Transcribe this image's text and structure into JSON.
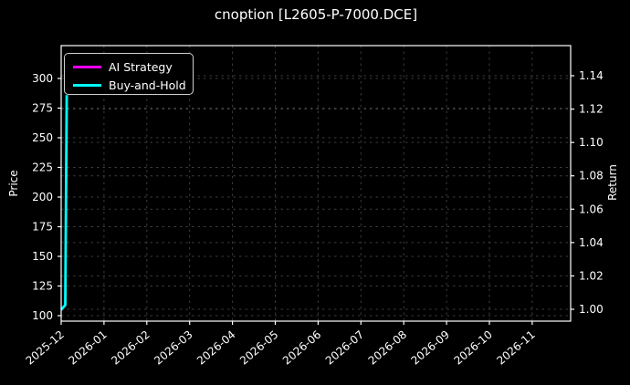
{
  "chart_data": {
    "type": "line",
    "title": "cnoption [L2605-P-7000.DCE]",
    "grid": true,
    "legend_position": "upper-left",
    "colors": {
      "background": "#000000",
      "text": "#ffffff",
      "grid": "#3d3d3d",
      "spine": "#ffffff",
      "ai_strategy": "#ff00ff",
      "buy_and_hold": "#00ffff"
    },
    "x_axis": {
      "tick_labels": [
        "2025-12",
        "2026-01",
        "2026-02",
        "2026-03",
        "2026-04",
        "2026-05",
        "2026-06",
        "2026-07",
        "2026-08",
        "2026-09",
        "2026-10",
        "2026-11"
      ]
    },
    "left_axis": {
      "label": "Price",
      "tick_labels": [
        "100",
        "125",
        "150",
        "175",
        "200",
        "225",
        "250",
        "275",
        "300"
      ],
      "tick_step": 25
    },
    "right_axis": {
      "label": "Return",
      "tick_labels": [
        "1.00",
        "1.02",
        "1.04",
        "1.06",
        "1.08",
        "1.10",
        "1.12",
        "1.14"
      ],
      "tick_step": 0.02
    },
    "series": [
      {
        "name": "AI Strategy",
        "color": "#ff00ff",
        "axis": "right",
        "x": [
          "2025-12-01",
          "2025-12-02"
        ],
        "values": [
          1.0,
          1.0
        ]
      },
      {
        "name": "Buy-and-Hold",
        "color": "#00ffff",
        "axis": "left",
        "x": [
          "2025-12-01",
          "2025-12-04",
          "2025-12-05"
        ],
        "values": [
          105,
          109,
          286
        ]
      }
    ]
  }
}
